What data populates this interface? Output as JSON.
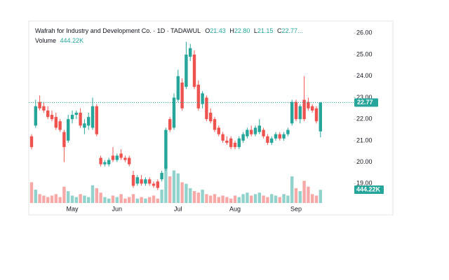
{
  "chart_data": {
    "type": "candlestick",
    "title": "Wafrah for Industry and Development Co. · 1D · TADAWUL",
    "ohlc_header": [
      {
        "key": "O",
        "value": "21.43"
      },
      {
        "key": "H",
        "value": "22.80"
      },
      {
        "key": "L",
        "value": "21.15"
      },
      {
        "key": "C",
        "value": "22.77..."
      }
    ],
    "volume_title": "Volume",
    "last_price": 22.77,
    "last_volume": {
      "value": 444220,
      "label": "444.22K"
    },
    "up_color": "#26a69a",
    "down_color": "#ef5350",
    "ylim": [
      18.1,
      26.4
    ],
    "yticks": [
      {
        "value": 19,
        "label": "19.00"
      },
      {
        "value": 20,
        "label": "20.00"
      },
      {
        "value": 21,
        "label": "21.00"
      },
      {
        "value": 22,
        "label": "22.00"
      },
      {
        "value": 23,
        "label": "23.00"
      },
      {
        "value": 24,
        "label": "24.00"
      },
      {
        "value": 25,
        "label": "25.00"
      },
      {
        "value": 26,
        "label": "26.00"
      }
    ],
    "categories": [
      null,
      null,
      null,
      null,
      null,
      null,
      null,
      null,
      null,
      null,
      "May",
      null,
      null,
      null,
      null,
      null,
      null,
      null,
      null,
      null,
      null,
      "Jun",
      null,
      null,
      null,
      null,
      null,
      null,
      null,
      null,
      null,
      null,
      null,
      null,
      null,
      null,
      "Jul",
      null,
      null,
      null,
      null,
      null,
      null,
      null,
      null,
      null,
      null,
      null,
      null,
      null,
      "Aug",
      null,
      null,
      null,
      null,
      null,
      null,
      null,
      null,
      null,
      null,
      null,
      null,
      null,
      null,
      "Sep",
      null,
      null,
      null,
      null,
      null,
      null
    ],
    "open": [
      21.2,
      21.7,
      22.8,
      22.6,
      22.4,
      22.2,
      22.1,
      21.9,
      21.4,
      21.0,
      22.0,
      22.2,
      22.3,
      21.6,
      21.7,
      21.6,
      22.6,
      20.2,
      19.9,
      19.9,
      20.3,
      20.1,
      20.4,
      20.2,
      20.2,
      19.4,
      19.0,
      19.2,
      19.0,
      19.2,
      19.0,
      19.1,
      19.2,
      19.7,
      22.0,
      21.6,
      22.9,
      23.7,
      23.5,
      24.9,
      25.0,
      23.6,
      22.7,
      23.0,
      22.3,
      22.0,
      21.6,
      21.3,
      21.0,
      21.1,
      20.9,
      20.7,
      21.0,
      21.2,
      21.5,
      21.3,
      21.4,
      21.5,
      21.2,
      20.9,
      21.1,
      21.3,
      21.1,
      21.3,
      21.8,
      22.8,
      22.0,
      22.9,
      22.8,
      22.6,
      22.5,
      21.43
    ],
    "high": [
      21.3,
      22.9,
      23.1,
      22.8,
      22.6,
      22.4,
      22.3,
      22.0,
      21.5,
      22.2,
      22.4,
      22.4,
      22.5,
      22.0,
      22.3,
      23.0,
      22.7,
      20.3,
      20.1,
      20.2,
      20.7,
      20.4,
      20.6,
      20.3,
      20.3,
      19.6,
      19.4,
      19.4,
      19.3,
      19.3,
      19.1,
      19.2,
      19.6,
      21.6,
      22.1,
      23.2,
      24.3,
      23.9,
      25.6,
      25.5,
      25.2,
      23.8,
      23.3,
      23.1,
      22.5,
      22.1,
      21.7,
      21.4,
      21.2,
      21.2,
      21.0,
      21.2,
      21.4,
      21.6,
      21.7,
      21.7,
      22.0,
      21.6,
      21.3,
      21.2,
      21.4,
      21.4,
      21.4,
      21.6,
      22.9,
      22.9,
      22.7,
      24.0,
      23.0,
      22.7,
      22.6,
      22.8
    ],
    "low": [
      20.6,
      21.6,
      22.4,
      22.3,
      22.0,
      21.9,
      21.5,
      21.4,
      20.0,
      20.9,
      21.8,
      22.0,
      21.6,
      21.3,
      21.5,
      21.5,
      21.2,
      19.8,
      19.8,
      19.8,
      20.0,
      20.0,
      20.1,
      20.0,
      19.8,
      18.8,
      18.9,
      18.9,
      18.9,
      18.9,
      18.8,
      18.7,
      19.1,
      19.6,
      21.4,
      21.5,
      22.8,
      22.4,
      23.4,
      24.7,
      23.4,
      22.4,
      22.5,
      21.9,
      21.8,
      21.4,
      21.2,
      20.9,
      20.8,
      20.6,
      20.6,
      20.6,
      20.9,
      21.1,
      21.2,
      21.2,
      21.3,
      21.1,
      20.8,
      20.8,
      21.0,
      21.0,
      21.0,
      21.2,
      21.7,
      21.9,
      21.8,
      21.9,
      22.4,
      22.3,
      21.8,
      21.15
    ],
    "close": [
      20.7,
      22.6,
      22.5,
      22.4,
      22.1,
      22.0,
      21.6,
      21.5,
      20.7,
      22.0,
      22.2,
      22.3,
      21.7,
      21.8,
      22.1,
      22.6,
      21.3,
      19.9,
      20.0,
      20.1,
      20.1,
      20.3,
      20.2,
      20.1,
      19.9,
      18.9,
      19.3,
      19.0,
      19.2,
      19.0,
      18.9,
      18.8,
      19.5,
      21.5,
      21.5,
      23.0,
      24.0,
      22.5,
      25.0,
      25.3,
      23.5,
      22.5,
      23.2,
      22.0,
      21.9,
      21.5,
      21.3,
      21.0,
      20.9,
      20.7,
      20.7,
      21.1,
      21.3,
      21.5,
      21.3,
      21.6,
      21.7,
      21.2,
      20.9,
      21.1,
      21.3,
      21.1,
      21.3,
      21.5,
      22.8,
      22.0,
      22.6,
      22.0,
      22.5,
      22.4,
      21.9,
      22.77
    ],
    "volume": [
      700000,
      450000,
      300000,
      250000,
      200000,
      250000,
      300000,
      200000,
      550000,
      400000,
      250000,
      200000,
      300000,
      250000,
      200000,
      600000,
      500000,
      350000,
      200000,
      150000,
      250000,
      200000,
      300000,
      150000,
      200000,
      300000,
      150000,
      200000,
      150000,
      200000,
      250000,
      150000,
      450000,
      1300000,
      900000,
      1100000,
      1000000,
      700000,
      650000,
      500000,
      400000,
      350000,
      450000,
      300000,
      250000,
      300000,
      200000,
      250000,
      200000,
      150000,
      250000,
      200000,
      300000,
      350000,
      250000,
      300000,
      350000,
      250000,
      200000,
      300000,
      250000,
      200000,
      300000,
      250000,
      900000,
      500000,
      400000,
      750000,
      550000,
      300000,
      250000,
      444220
    ]
  }
}
